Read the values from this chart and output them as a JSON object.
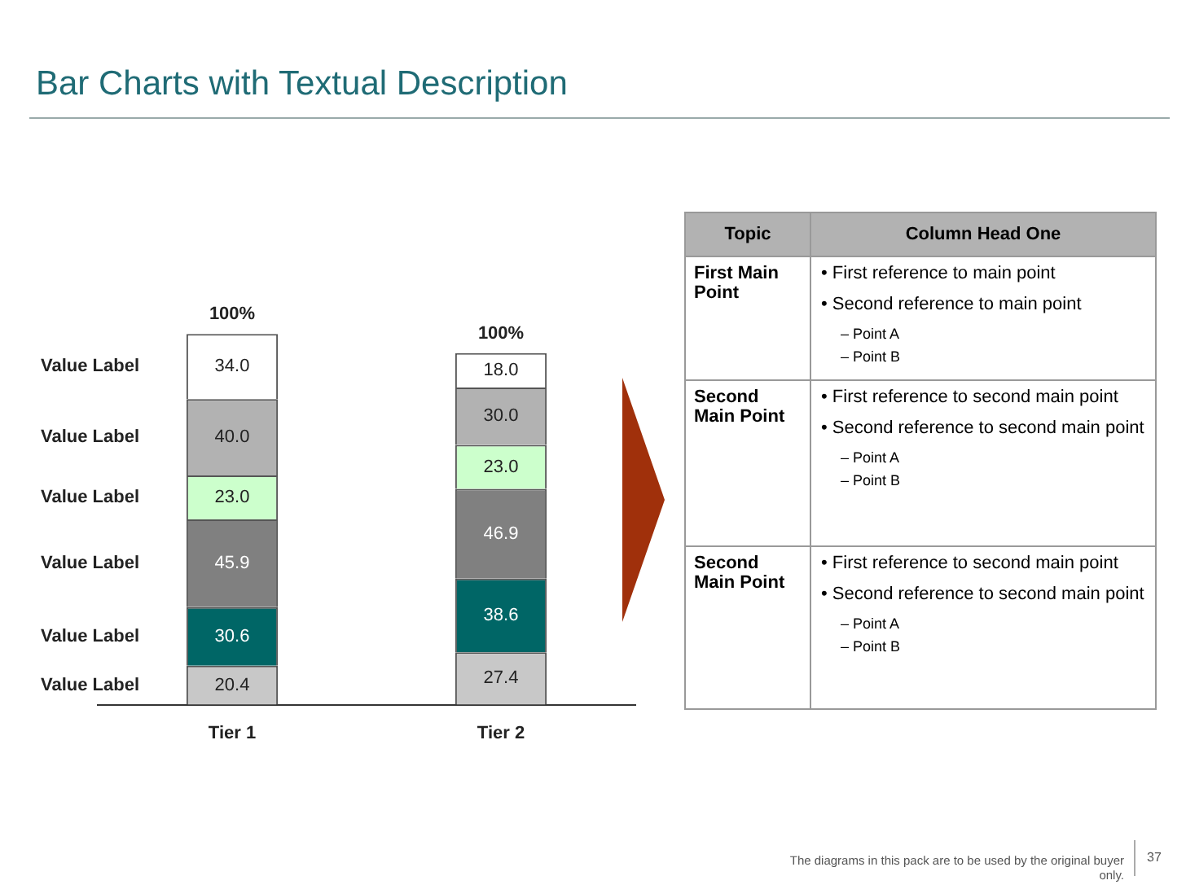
{
  "chart_data": [
    {
      "type": "bar",
      "title": "Bar Charts with Textual Description",
      "categories": [
        "Tier 1",
        "Tier 2"
      ],
      "stacked": true,
      "legend": false,
      "grid": false,
      "tick_labels": "x",
      "series": [
        {
          "name": "Value Label",
          "color": "#c8c8c8",
          "values": [
            20.4,
            27.4
          ],
          "value_labels": [
            "20.4",
            "27.4"
          ]
        },
        {
          "name": "Value Label",
          "color": "#006666",
          "values": [
            30.6,
            38.6
          ],
          "value_labels": [
            "30.6",
            "38.6"
          ]
        },
        {
          "name": "Value Label",
          "color": "#808080",
          "values": [
            45.9,
            46.9
          ],
          "value_labels": [
            "45.9",
            "46.9"
          ]
        },
        {
          "name": "Value Label",
          "color": "#ccffcc",
          "values": [
            23.0,
            23.0
          ],
          "value_labels": [
            "23.0",
            "23.0"
          ]
        },
        {
          "name": "Value Label",
          "color": "#b2b2b2",
          "values": [
            40.0,
            30.0
          ],
          "value_labels": [
            "40.0",
            "30.0"
          ]
        },
        {
          "name": "Value Label",
          "color": "#ffffff",
          "values": [
            34.0,
            18.0
          ],
          "value_labels": [
            "34.0",
            "18.0"
          ]
        }
      ],
      "annotations": [
        "100%",
        "100%",
        "The diagrams in this pack are to be used by the original buyer only.",
        "37"
      ]
    },
    {
      "type": "other",
      "annotations": [
        "Topic",
        "Column Head One",
        "First Main Point",
        "• First reference to main point",
        "• Second reference to main point",
        "– Point A",
        "– Point B",
        "Second Main Point",
        "• First reference to second main point",
        "• Second reference to second main point",
        "– Point A",
        "– Point B",
        "Second Main Point",
        "• First reference to second main point",
        "• Second reference to second main point",
        "– Point A",
        "– Point B"
      ]
    }
  ]
}
